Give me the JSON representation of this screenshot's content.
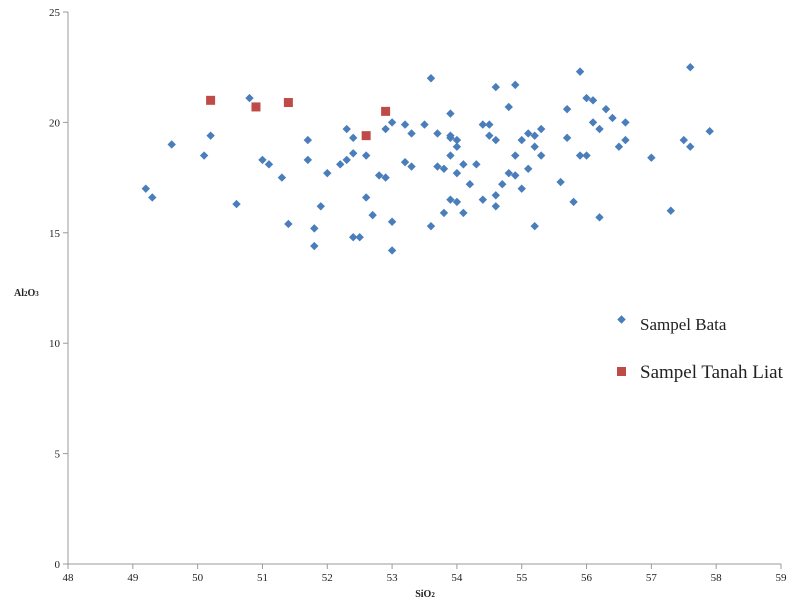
{
  "chart_data": {
    "type": "scatter",
    "xlabel": "SiO2",
    "ylabel": "Al2O3",
    "xlim": [
      48,
      59
    ],
    "ylim": [
      0,
      25
    ],
    "x_ticks": [
      "48",
      "49",
      "50",
      "51",
      "52",
      "53",
      "54",
      "55",
      "56",
      "57",
      "58",
      "59"
    ],
    "y_ticks": [
      "0",
      "5",
      "10",
      "15",
      "20",
      "25"
    ],
    "grid": false,
    "legend_position": "right",
    "series": [
      {
        "name": "Sampel Bata",
        "marker": "diamond",
        "color": "#4a7ebb",
        "points": [
          [
            49.2,
            17.0
          ],
          [
            49.3,
            16.6
          ],
          [
            49.6,
            19.0
          ],
          [
            50.1,
            18.5
          ],
          [
            50.2,
            19.4
          ],
          [
            50.6,
            16.3
          ],
          [
            50.8,
            21.1
          ],
          [
            51.0,
            18.3
          ],
          [
            51.1,
            18.1
          ],
          [
            51.3,
            17.5
          ],
          [
            51.4,
            15.4
          ],
          [
            51.7,
            19.2
          ],
          [
            51.7,
            18.3
          ],
          [
            51.8,
            14.4
          ],
          [
            51.8,
            15.2
          ],
          [
            51.9,
            16.2
          ],
          [
            52.0,
            17.7
          ],
          [
            52.2,
            18.1
          ],
          [
            52.3,
            19.7
          ],
          [
            52.3,
            18.3
          ],
          [
            52.4,
            19.3
          ],
          [
            52.4,
            18.6
          ],
          [
            52.4,
            14.8
          ],
          [
            52.5,
            14.8
          ],
          [
            52.6,
            18.5
          ],
          [
            52.6,
            16.6
          ],
          [
            52.7,
            15.8
          ],
          [
            52.8,
            17.6
          ],
          [
            52.9,
            17.5
          ],
          [
            52.9,
            19.7
          ],
          [
            53.0,
            20.0
          ],
          [
            53.0,
            15.5
          ],
          [
            53.0,
            14.2
          ],
          [
            53.2,
            18.2
          ],
          [
            53.2,
            19.9
          ],
          [
            53.3,
            19.5
          ],
          [
            53.3,
            18.0
          ],
          [
            53.5,
            19.9
          ],
          [
            53.6,
            15.3
          ],
          [
            53.6,
            22.0
          ],
          [
            53.7,
            18.0
          ],
          [
            53.7,
            19.5
          ],
          [
            53.8,
            17.9
          ],
          [
            53.8,
            15.9
          ],
          [
            53.9,
            20.4
          ],
          [
            53.9,
            19.4
          ],
          [
            53.9,
            19.3
          ],
          [
            53.9,
            18.5
          ],
          [
            53.9,
            16.5
          ],
          [
            54.0,
            19.2
          ],
          [
            54.0,
            18.9
          ],
          [
            54.0,
            17.7
          ],
          [
            54.0,
            16.4
          ],
          [
            54.1,
            18.1
          ],
          [
            54.1,
            15.9
          ],
          [
            54.2,
            17.2
          ],
          [
            54.3,
            18.1
          ],
          [
            54.4,
            19.9
          ],
          [
            54.4,
            16.5
          ],
          [
            54.5,
            19.9
          ],
          [
            54.5,
            19.4
          ],
          [
            54.6,
            19.2
          ],
          [
            54.6,
            16.7
          ],
          [
            54.6,
            16.2
          ],
          [
            54.6,
            21.6
          ],
          [
            54.7,
            17.2
          ],
          [
            54.8,
            17.7
          ],
          [
            54.8,
            20.7
          ],
          [
            54.9,
            21.7
          ],
          [
            54.9,
            18.5
          ],
          [
            54.9,
            17.6
          ],
          [
            55.0,
            19.2
          ],
          [
            55.0,
            17.0
          ],
          [
            55.1,
            19.5
          ],
          [
            55.1,
            17.9
          ],
          [
            55.2,
            19.4
          ],
          [
            55.2,
            18.9
          ],
          [
            55.2,
            15.3
          ],
          [
            55.3,
            19.7
          ],
          [
            55.3,
            18.5
          ],
          [
            55.6,
            17.3
          ],
          [
            55.7,
            19.3
          ],
          [
            55.7,
            20.6
          ],
          [
            55.8,
            16.4
          ],
          [
            55.9,
            22.3
          ],
          [
            55.9,
            18.5
          ],
          [
            56.0,
            21.1
          ],
          [
            56.0,
            18.5
          ],
          [
            56.1,
            21.0
          ],
          [
            56.1,
            20.0
          ],
          [
            56.2,
            19.7
          ],
          [
            56.2,
            15.7
          ],
          [
            56.3,
            20.6
          ],
          [
            56.4,
            20.2
          ],
          [
            56.5,
            18.9
          ],
          [
            56.6,
            19.2
          ],
          [
            56.6,
            20.0
          ],
          [
            57.0,
            18.4
          ],
          [
            57.3,
            16.0
          ],
          [
            57.5,
            19.2
          ],
          [
            57.6,
            22.5
          ],
          [
            57.6,
            18.9
          ],
          [
            57.9,
            19.6
          ]
        ]
      },
      {
        "name": "Sampel Tanah Liat",
        "marker": "square",
        "color": "#be4b48",
        "points": [
          [
            50.2,
            21.0
          ],
          [
            50.9,
            20.7
          ],
          [
            51.4,
            20.9
          ],
          [
            52.6,
            19.4
          ],
          [
            52.9,
            20.5
          ]
        ]
      }
    ]
  }
}
